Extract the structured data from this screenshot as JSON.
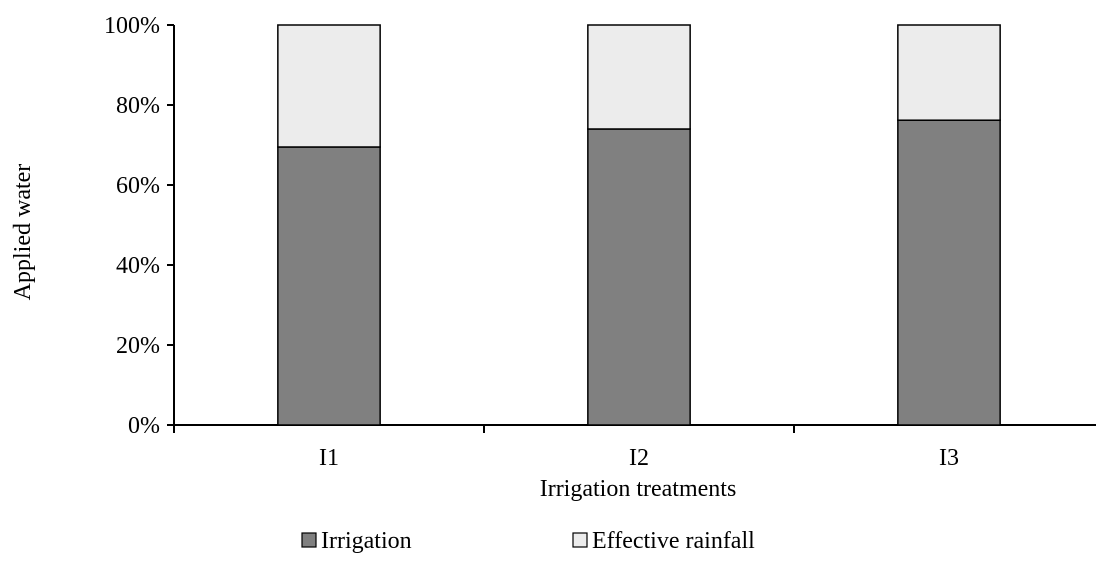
{
  "chart_data": {
    "type": "bar",
    "stacked": true,
    "categories": [
      "I1",
      "I2",
      "I3"
    ],
    "series": [
      {
        "name": "Irrigation",
        "values": [
          69.5,
          74.0,
          76.2
        ],
        "color": "#808080"
      },
      {
        "name": "Effective rainfall",
        "values": [
          30.5,
          26.0,
          23.8
        ],
        "color": "#ececec"
      }
    ],
    "xlabel": "Irrigation treatments",
    "ylabel": "Applied water",
    "ylim": [
      0,
      100
    ],
    "yticks": [
      0,
      20,
      40,
      60,
      80,
      100
    ],
    "ytick_labels": [
      "0%",
      "20%",
      "40%",
      "60%",
      "80%",
      "100%"
    ],
    "grid": false,
    "legend_position": "bottom"
  }
}
